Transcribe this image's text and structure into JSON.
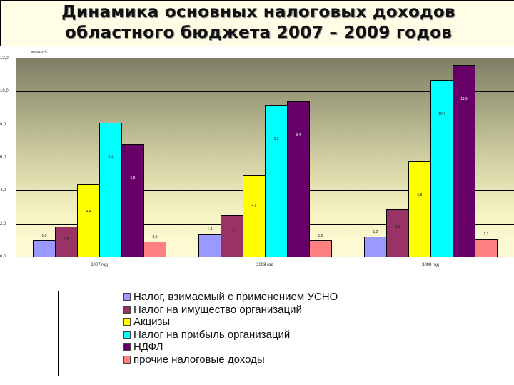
{
  "title": {
    "line1": "Динамика основных налоговых доходов",
    "line2": "областного бюджета 2007 – 2009 годов"
  },
  "units_label": "млрд.руб.",
  "y_ticks": [
    "12,0",
    "10,0",
    "8,0",
    "6,0",
    "4,0",
    "2,0",
    "0,0"
  ],
  "legend": [
    {
      "label": "Налог, взимаемый с применением УСНО",
      "color": "#9999FF"
    },
    {
      "label": "Налог на имущество организаций",
      "color": "#993366"
    },
    {
      "label": "Акцизы",
      "color": "#FFFF00"
    },
    {
      "label": "Налог на прибыль организаций",
      "color": "#00FFFF"
    },
    {
      "label": "НДФЛ",
      "color": "#660066"
    },
    {
      "label": "прочие налоговые доходы",
      "color": "#FF8080"
    }
  ],
  "chart_data": {
    "type": "bar",
    "title": "Динамика основных налоговых доходов областного бюджета 2007 – 2009 годов",
    "xlabel": "",
    "ylabel": "",
    "ylim": [
      0,
      12
    ],
    "y_ticks": [
      0,
      2,
      4,
      6,
      8,
      10,
      12
    ],
    "grid": true,
    "legend_position": "bottom",
    "categories": [
      "2007 год",
      "2008 год",
      "2009 год"
    ],
    "series": [
      {
        "name": "Налог, взимаемый с применением УСНО",
        "color": "#9999FF",
        "values": [
          1.0,
          1.4,
          1.2
        ],
        "labels": [
          "1,0",
          "1,4",
          "1,2"
        ]
      },
      {
        "name": "Налог на имущество организаций",
        "color": "#993366",
        "values": [
          1.8,
          2.5,
          2.9
        ],
        "labels": [
          "1,8",
          "2,5",
          "2,9"
        ]
      },
      {
        "name": "Акцизы",
        "color": "#FFFF00",
        "values": [
          4.4,
          4.9,
          5.8
        ],
        "labels": [
          "4,4",
          "4,9",
          "5,8"
        ]
      },
      {
        "name": "Налог на прибыль организаций",
        "color": "#00FFFF",
        "values": [
          8.1,
          9.2,
          10.7
        ],
        "labels": [
          "8,1",
          "9,2",
          "10,7"
        ]
      },
      {
        "name": "НДФЛ",
        "color": "#660066",
        "values": [
          6.8,
          9.4,
          11.6
        ],
        "labels": [
          "6,8",
          "9,4",
          "11,6"
        ]
      },
      {
        "name": "прочие налоговые доходы",
        "color": "#FF8080",
        "values": [
          0.9,
          1.0,
          1.1
        ],
        "labels": [
          "0,9",
          "1,0",
          "1,1"
        ]
      }
    ]
  }
}
